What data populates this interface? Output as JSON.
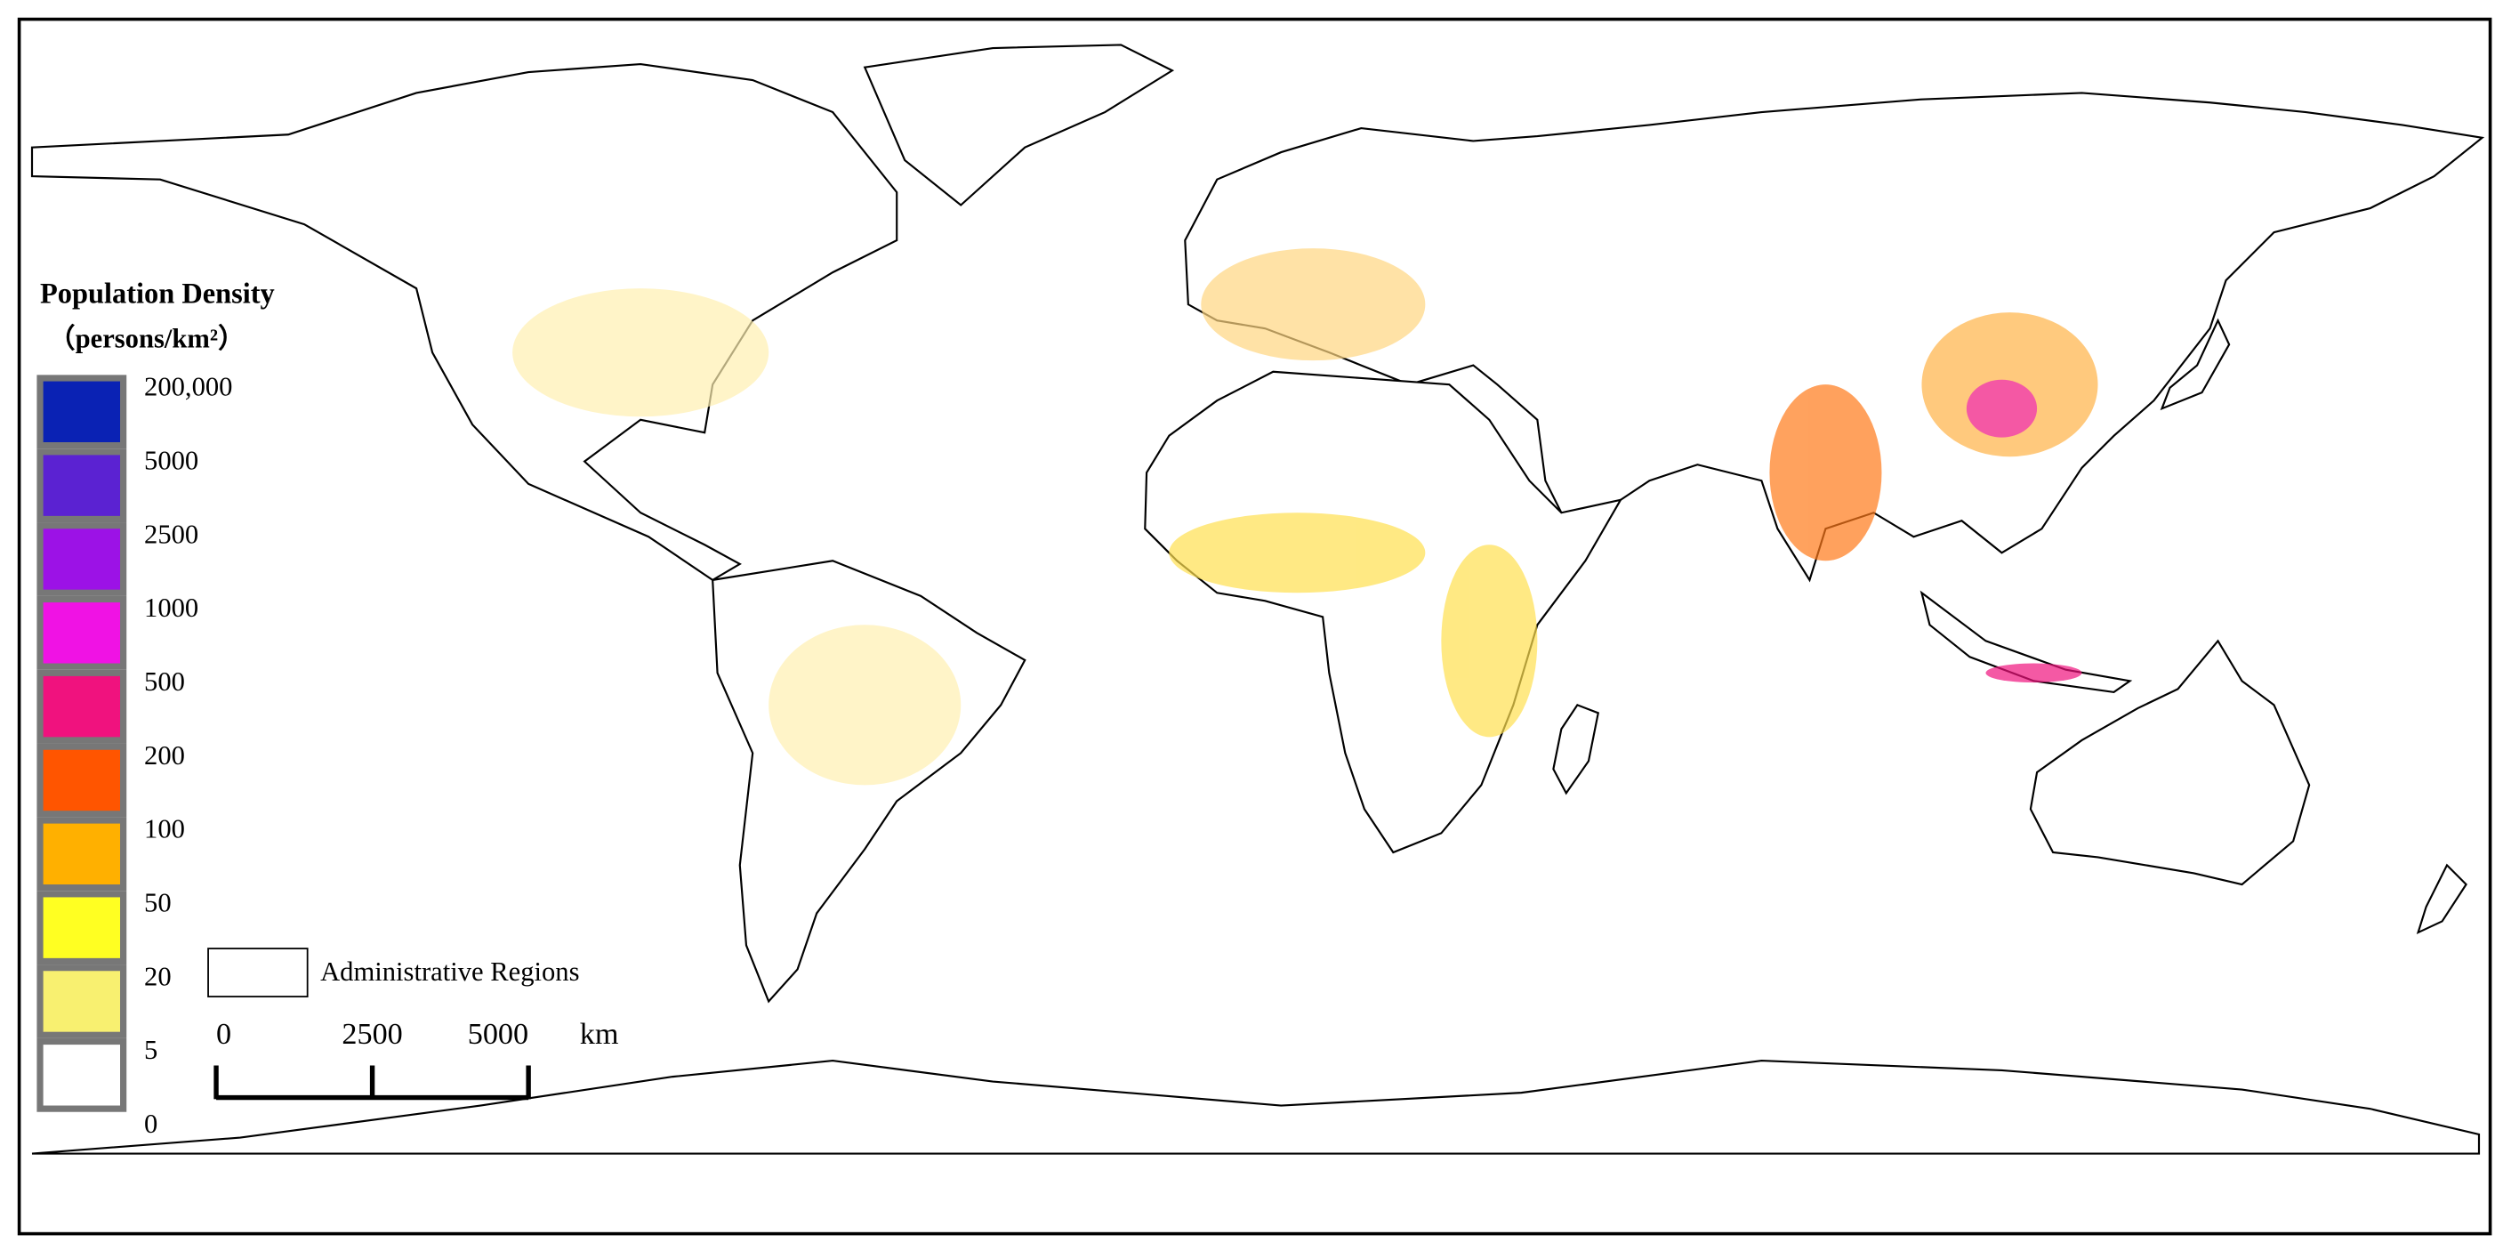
{
  "legend": {
    "title": "Population Density",
    "units": "（persons/km²）",
    "labels": [
      "200,000",
      "5000",
      "2500",
      "1000",
      "500",
      "200",
      "100",
      "50",
      "20",
      "5",
      "0"
    ],
    "colors": [
      "#0a22b4",
      "#5b22d2",
      "#9c12e6",
      "#f012e4",
      "#f0127e",
      "#ff5500",
      "#ffb000",
      "#ffff22",
      "#f8f070",
      "#ffffff"
    ]
  },
  "admin_label": "Administrative Regions",
  "scale_bar": {
    "ticks": [
      0,
      2500,
      5000
    ],
    "unit": "km"
  }
}
